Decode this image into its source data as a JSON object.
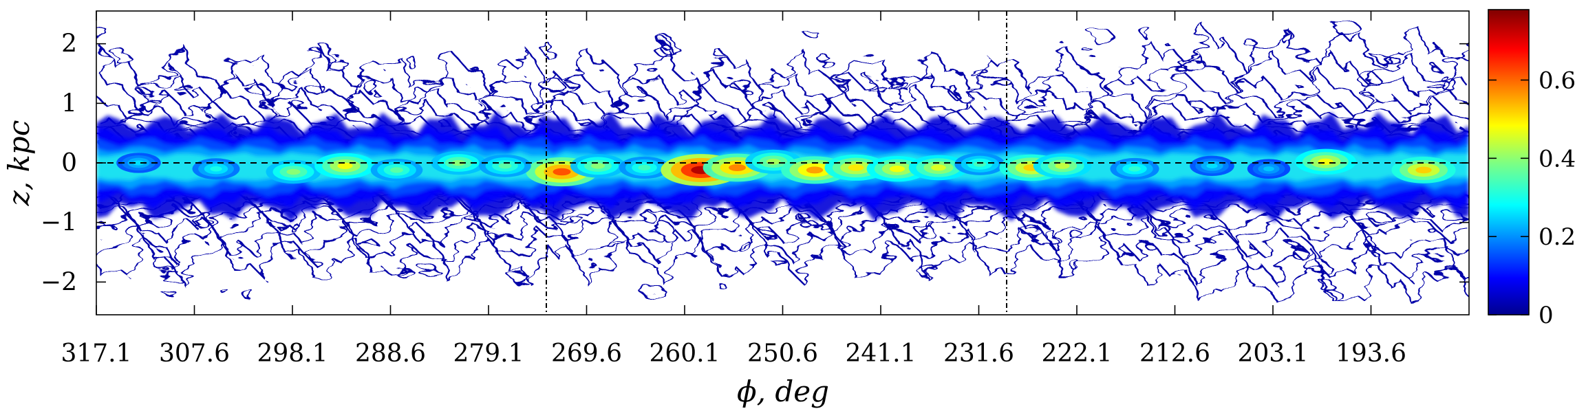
{
  "chart_data": {
    "type": "heatmap",
    "title": "",
    "xlabel": "ϕ,  deg",
    "ylabel": "z,  kpc",
    "xlim": [
      317.1,
      184.1
    ],
    "x_reversed": true,
    "ylim": [
      -2.55,
      2.55
    ],
    "x_ticks": [
      "317.1",
      "307.6",
      "298.1",
      "288.6",
      "279.1",
      "269.6",
      "260.1",
      "250.6",
      "241.1",
      "231.6",
      "222.1",
      "212.6",
      "203.1",
      "193.6"
    ],
    "x_tick_values": [
      317.1,
      307.6,
      298.1,
      288.6,
      279.1,
      269.6,
      260.1,
      250.6,
      241.1,
      231.6,
      222.1,
      212.6,
      203.1,
      193.6
    ],
    "y_ticks": [
      "−2",
      "−1",
      "0",
      "1",
      "2"
    ],
    "y_tick_values": [
      -2,
      -1,
      0,
      1,
      2
    ],
    "reference_lines": [
      {
        "orientation": "horizontal",
        "value": 0,
        "style": "dashed"
      },
      {
        "orientation": "vertical",
        "value": 273.5,
        "style": "dash-dot"
      },
      {
        "orientation": "vertical",
        "value": 228.9,
        "style": "dash-dot"
      }
    ],
    "colorbar": {
      "colormap": "jet",
      "range": [
        0,
        0.78
      ],
      "ticks": [
        "0",
        "0.2",
        "0.4",
        "0.6"
      ],
      "tick_values": [
        0,
        0.2,
        0.4,
        0.6
      ]
    },
    "intensity_peaks": [
      {
        "phi": 272.0,
        "z": -0.15,
        "value": 0.62
      },
      {
        "phi": 268.5,
        "z": -0.05,
        "value": 0.4
      },
      {
        "phi": 264.0,
        "z": -0.08,
        "value": 0.34
      },
      {
        "phi": 258.5,
        "z": -0.12,
        "value": 0.74
      },
      {
        "phi": 255.0,
        "z": -0.08,
        "value": 0.58
      },
      {
        "phi": 251.5,
        "z": 0.02,
        "value": 0.42
      },
      {
        "phi": 247.5,
        "z": -0.12,
        "value": 0.56
      },
      {
        "phi": 243.5,
        "z": -0.08,
        "value": 0.5
      },
      {
        "phi": 239.5,
        "z": -0.1,
        "value": 0.48
      },
      {
        "phi": 235.5,
        "z": -0.08,
        "value": 0.46
      },
      {
        "phi": 231.5,
        "z": -0.02,
        "value": 0.34
      },
      {
        "phi": 226.5,
        "z": -0.08,
        "value": 0.52
      },
      {
        "phi": 223.5,
        "z": -0.05,
        "value": 0.44
      },
      {
        "phi": 298.0,
        "z": -0.15,
        "value": 0.4
      },
      {
        "phi": 293.0,
        "z": -0.05,
        "value": 0.48
      },
      {
        "phi": 288.0,
        "z": -0.12,
        "value": 0.36
      },
      {
        "phi": 282.0,
        "z": 0.0,
        "value": 0.4
      },
      {
        "phi": 277.5,
        "z": -0.05,
        "value": 0.36
      },
      {
        "phi": 305.5,
        "z": -0.1,
        "value": 0.3
      },
      {
        "phi": 313.0,
        "z": 0.0,
        "value": 0.26
      },
      {
        "phi": 216.5,
        "z": -0.1,
        "value": 0.32
      },
      {
        "phi": 209.0,
        "z": -0.05,
        "value": 0.26
      },
      {
        "phi": 198.0,
        "z": 0.02,
        "value": 0.48
      },
      {
        "phi": 188.5,
        "z": -0.12,
        "value": 0.52
      },
      {
        "phi": 203.5,
        "z": -0.1,
        "value": 0.24
      }
    ]
  }
}
